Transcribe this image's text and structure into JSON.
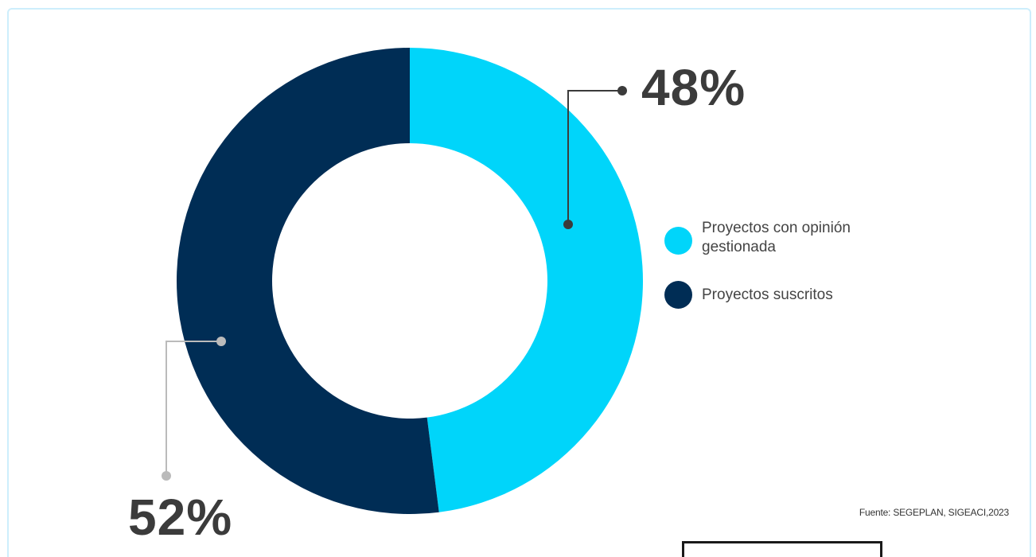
{
  "chart_data": {
    "type": "pie",
    "donut": true,
    "slices": [
      {
        "label": "Proyectos con opinión gestionada",
        "value": 48,
        "display": "48%",
        "color": "#00d5fa"
      },
      {
        "label": "Proyectos suscritos",
        "value": 52,
        "display": "52%",
        "color": "#002d55"
      }
    ],
    "legend_placement": "right",
    "source": "Fuente: SEGEPLAN, SIGEACI,2023"
  },
  "colors": {
    "leader_dark": "#3b3b3b",
    "leader_light": "#bbbbbb",
    "frame_border": "#cdeefc"
  }
}
